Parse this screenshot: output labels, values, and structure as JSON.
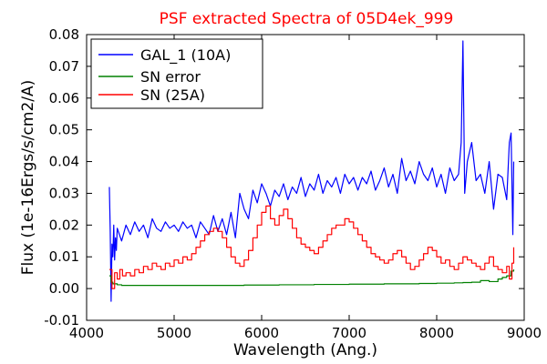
{
  "chart_data": {
    "type": "line",
    "title": "PSF extracted Spectra of 05D4ek_999",
    "xlabel": "Wavelength (Ang.)",
    "ylabel": "Flux (1e-16Ergs/s/cm2/A)",
    "xlim": [
      4000,
      9000
    ],
    "ylim": [
      -0.01,
      0.08
    ],
    "xticks": [
      4000,
      5000,
      6000,
      7000,
      8000,
      9000
    ],
    "xtick_labels": [
      "4000",
      "5000",
      "6000",
      "7000",
      "8000",
      "9000"
    ],
    "yticks": [
      -0.01,
      0.0,
      0.01,
      0.02,
      0.03,
      0.04,
      0.05,
      0.06,
      0.07,
      0.08
    ],
    "ytick_labels": [
      "-0.01",
      "0.00",
      "0.01",
      "0.02",
      "0.03",
      "0.04",
      "0.05",
      "0.06",
      "0.07",
      "0.08"
    ],
    "grid": false,
    "legend": "top-left",
    "series": [
      {
        "name": "GAL_1 (10A)",
        "color": "#0000ff",
        "step": false,
        "x": [
          4260,
          4270,
          4280,
          4290,
          4300,
          4310,
          4320,
          4330,
          4340,
          4350,
          4400,
          4450,
          4500,
          4550,
          4600,
          4650,
          4700,
          4750,
          4800,
          4850,
          4900,
          4950,
          5000,
          5050,
          5100,
          5150,
          5200,
          5250,
          5300,
          5350,
          5400,
          5450,
          5500,
          5550,
          5600,
          5650,
          5700,
          5750,
          5800,
          5850,
          5900,
          5950,
          6000,
          6050,
          6100,
          6150,
          6200,
          6250,
          6300,
          6350,
          6400,
          6450,
          6500,
          6550,
          6600,
          6650,
          6700,
          6750,
          6800,
          6850,
          6900,
          6950,
          7000,
          7050,
          7100,
          7150,
          7200,
          7250,
          7300,
          7350,
          7400,
          7450,
          7500,
          7550,
          7600,
          7650,
          7700,
          7750,
          7800,
          7850,
          7900,
          7950,
          8000,
          8050,
          8100,
          8150,
          8200,
          8250,
          8280,
          8300,
          8320,
          8350,
          8400,
          8450,
          8500,
          8550,
          8600,
          8650,
          8700,
          8750,
          8800,
          8830,
          8850,
          8870,
          8880
        ],
        "y": [
          0.032,
          0.018,
          -0.004,
          0.014,
          0.01,
          0.02,
          0.009,
          0.016,
          0.012,
          0.019,
          0.015,
          0.02,
          0.017,
          0.021,
          0.018,
          0.02,
          0.016,
          0.022,
          0.019,
          0.018,
          0.021,
          0.019,
          0.02,
          0.018,
          0.021,
          0.019,
          0.02,
          0.016,
          0.021,
          0.019,
          0.017,
          0.023,
          0.018,
          0.022,
          0.017,
          0.024,
          0.016,
          0.03,
          0.025,
          0.022,
          0.031,
          0.027,
          0.033,
          0.03,
          0.026,
          0.031,
          0.029,
          0.033,
          0.028,
          0.032,
          0.03,
          0.035,
          0.029,
          0.033,
          0.031,
          0.036,
          0.03,
          0.034,
          0.032,
          0.035,
          0.03,
          0.036,
          0.033,
          0.035,
          0.031,
          0.035,
          0.033,
          0.037,
          0.031,
          0.034,
          0.038,
          0.032,
          0.036,
          0.03,
          0.041,
          0.034,
          0.037,
          0.033,
          0.04,
          0.036,
          0.034,
          0.038,
          0.032,
          0.036,
          0.03,
          0.038,
          0.034,
          0.036,
          0.046,
          0.078,
          0.03,
          0.04,
          0.046,
          0.034,
          0.036,
          0.03,
          0.04,
          0.025,
          0.036,
          0.035,
          0.028,
          0.046,
          0.049,
          0.017,
          0.04
        ]
      },
      {
        "name": "SN error",
        "color": "#008000",
        "step": true,
        "x": [
          4260,
          4280,
          4300,
          4350,
          4400,
          4500,
          4600,
          4800,
          5000,
          5200,
          5400,
          5500,
          5600,
          5800,
          6000,
          6200,
          6400,
          6600,
          6800,
          7000,
          7200,
          7400,
          7600,
          7800,
          8000,
          8100,
          8200,
          8300,
          8400,
          8500,
          8600,
          8700,
          8750,
          8800,
          8850,
          8880
        ],
        "y": [
          0.004,
          0.002,
          0.0015,
          0.0012,
          0.001,
          0.001,
          0.001,
          0.001,
          0.001,
          0.001,
          0.001,
          0.001,
          0.001,
          0.0011,
          0.0011,
          0.0012,
          0.0012,
          0.0013,
          0.0013,
          0.0014,
          0.0014,
          0.0015,
          0.0015,
          0.0016,
          0.0017,
          0.0017,
          0.0018,
          0.0019,
          0.002,
          0.0025,
          0.0022,
          0.003,
          0.0035,
          0.004,
          0.0055,
          0.006
        ]
      },
      {
        "name": "SN (25A)",
        "color": "#ff0000",
        "step": true,
        "x": [
          4260,
          4290,
          4320,
          4350,
          4380,
          4410,
          4450,
          4500,
          4550,
          4600,
          4650,
          4700,
          4750,
          4800,
          4850,
          4900,
          4950,
          5000,
          5050,
          5100,
          5150,
          5200,
          5250,
          5300,
          5350,
          5400,
          5450,
          5500,
          5550,
          5600,
          5650,
          5700,
          5750,
          5800,
          5850,
          5900,
          5950,
          6000,
          6050,
          6100,
          6150,
          6200,
          6250,
          6300,
          6350,
          6400,
          6450,
          6500,
          6550,
          6600,
          6650,
          6700,
          6750,
          6800,
          6850,
          6900,
          6950,
          7000,
          7050,
          7100,
          7150,
          7200,
          7250,
          7300,
          7350,
          7400,
          7450,
          7500,
          7550,
          7600,
          7650,
          7700,
          7750,
          7800,
          7850,
          7900,
          7950,
          8000,
          8050,
          8100,
          8150,
          8200,
          8250,
          8300,
          8350,
          8400,
          8450,
          8500,
          8550,
          8600,
          8650,
          8700,
          8750,
          8800,
          8830,
          8860,
          8880
        ],
        "y": [
          0.006,
          0.0,
          0.005,
          0.003,
          0.006,
          0.004,
          0.005,
          0.004,
          0.006,
          0.005,
          0.007,
          0.006,
          0.008,
          0.007,
          0.006,
          0.008,
          0.007,
          0.009,
          0.008,
          0.01,
          0.009,
          0.011,
          0.013,
          0.015,
          0.017,
          0.018,
          0.019,
          0.018,
          0.016,
          0.013,
          0.01,
          0.008,
          0.007,
          0.009,
          0.012,
          0.016,
          0.02,
          0.024,
          0.026,
          0.022,
          0.02,
          0.023,
          0.025,
          0.022,
          0.019,
          0.016,
          0.014,
          0.013,
          0.012,
          0.011,
          0.013,
          0.015,
          0.017,
          0.019,
          0.02,
          0.02,
          0.022,
          0.021,
          0.019,
          0.017,
          0.015,
          0.013,
          0.011,
          0.01,
          0.009,
          0.008,
          0.009,
          0.011,
          0.012,
          0.01,
          0.008,
          0.006,
          0.007,
          0.009,
          0.011,
          0.013,
          0.012,
          0.01,
          0.008,
          0.009,
          0.007,
          0.006,
          0.008,
          0.01,
          0.009,
          0.008,
          0.007,
          0.006,
          0.008,
          0.01,
          0.007,
          0.006,
          0.005,
          0.007,
          0.003,
          0.008,
          0.013
        ]
      }
    ]
  }
}
